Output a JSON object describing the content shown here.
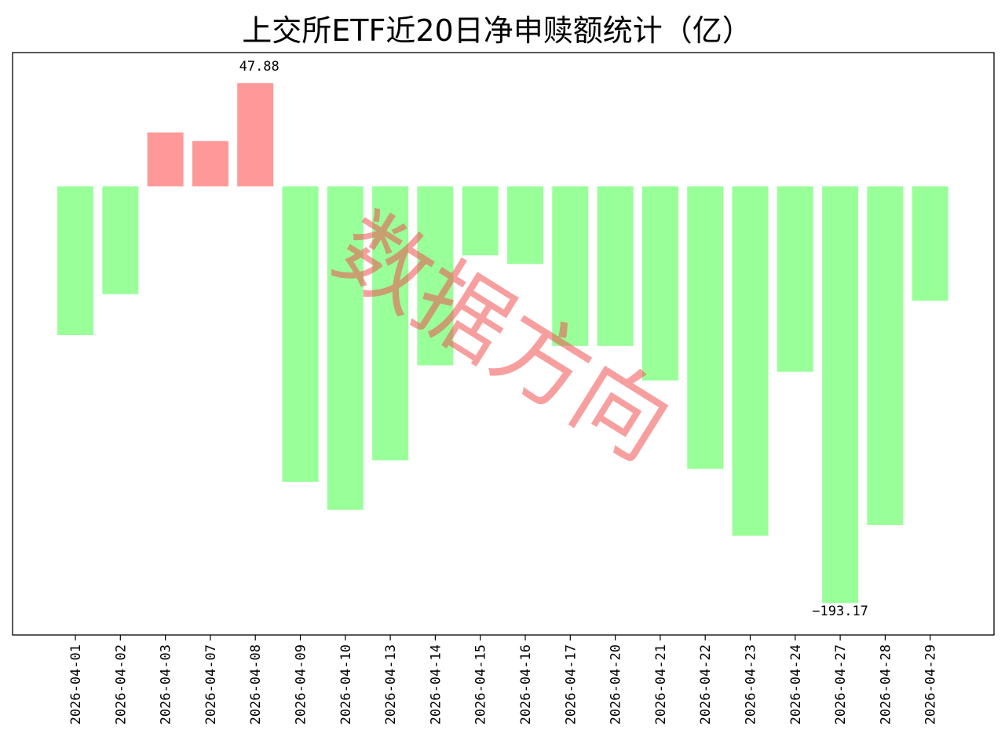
{
  "chart_data": {
    "type": "bar",
    "title": "上交所ETF近20日净申赎额统计（亿）",
    "categories": [
      "2026-04-01",
      "2026-04-02",
      "2026-04-03",
      "2026-04-07",
      "2026-04-08",
      "2026-04-09",
      "2026-04-10",
      "2026-04-13",
      "2026-04-14",
      "2026-04-15",
      "2026-04-16",
      "2026-04-17",
      "2026-04-20",
      "2026-04-21",
      "2026-04-22",
      "2026-04-23",
      "2026-04-24",
      "2026-04-27",
      "2026-04-28",
      "2026-04-29"
    ],
    "values": [
      -69.0,
      -50.0,
      25.0,
      21.0,
      47.88,
      -137.0,
      -150.0,
      -127.0,
      -83.0,
      -32.0,
      -36.0,
      -74.0,
      -74.0,
      -90.0,
      -131.0,
      -162.0,
      -86.0,
      -193.17,
      -157.0,
      -53.0
    ],
    "data_labels": {
      "max": "47.88",
      "min": "−193.17"
    },
    "ylim": [
      -208,
      62
    ],
    "colors": {
      "positive": "#ff9999",
      "negative": "#99ff99"
    },
    "grid": false,
    "xlabel": "",
    "ylabel": ""
  },
  "watermark": "数据方向"
}
